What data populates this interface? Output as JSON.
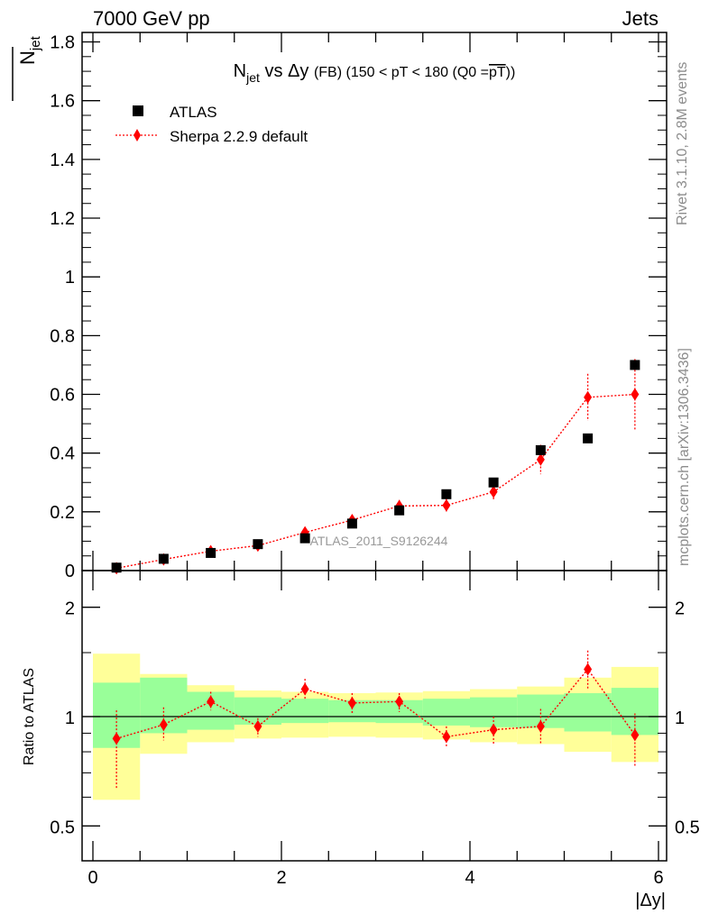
{
  "header": {
    "energy": "7000 GeV pp",
    "process": "Jets"
  },
  "plot_title": {
    "main": "N",
    "main_sub": "jet",
    "middle": " vs Δy ",
    "fb": "(FB)",
    "range": " (150 < pT < 180 (Q0 =",
    "q0": "pT",
    "close": "))"
  },
  "y_axis_title": {
    "base": "N",
    "sub": "jet"
  },
  "side_texts": {
    "rivet": "Rivet 3.1.10,  2.8M events",
    "mcplots": "mcplots.cern.ch [arXiv:1306.3436]"
  },
  "watermark": "ATLAS_2011_S9126244",
  "colors": {
    "data": "#000000",
    "mc": "#ff0000",
    "band_inner": "#99ff99",
    "band_outer": "#ffff99"
  },
  "chart_data": [
    {
      "type": "scatter",
      "panel": "main",
      "xlabel": "|Δy|",
      "ylabel": "Njet",
      "xlim": [
        0,
        6
      ],
      "ylim": [
        0,
        1.82
      ],
      "x_ticks": [
        0,
        2,
        4,
        6
      ],
      "y_ticks": [
        0,
        0.2,
        0.4,
        0.6,
        0.8,
        1,
        1.2,
        1.4,
        1.6,
        1.8
      ],
      "x_tick_labels": [
        "0",
        "2",
        "4",
        "6"
      ],
      "y_tick_labels": [
        "0",
        "0.2",
        "0.4",
        "0.6",
        "0.8",
        "1",
        "1.2",
        "1.4",
        "1.6",
        "1.8"
      ],
      "bin_edges": [
        0,
        0.5,
        1,
        1.5,
        2,
        2.5,
        3,
        3.5,
        4,
        4.5,
        5,
        5.5,
        6
      ],
      "legend": [
        "ATLAS",
        "Sherpa 2.2.9 default"
      ],
      "legend_position": "top-left",
      "series": [
        {
          "name": "ATLAS",
          "marker": "square",
          "x": [
            0.25,
            0.75,
            1.25,
            1.75,
            2.25,
            2.75,
            3.25,
            3.75,
            4.25,
            4.75,
            5.25,
            5.75
          ],
          "values": [
            0.01,
            0.04,
            0.06,
            0.09,
            0.11,
            0.16,
            0.205,
            0.26,
            0.3,
            0.41,
            0.45,
            0.7
          ]
        },
        {
          "name": "Sherpa 2.2.9 default",
          "marker": "diamond",
          "line": "dotted",
          "x": [
            0.25,
            0.75,
            1.25,
            1.75,
            2.25,
            2.75,
            3.25,
            3.75,
            4.25,
            4.75,
            5.25,
            5.75
          ],
          "values": [
            0.008,
            0.038,
            0.066,
            0.085,
            0.13,
            0.172,
            0.22,
            0.222,
            0.268,
            0.378,
            0.59,
            0.6
          ],
          "err_lo": [
            0.005,
            0.008,
            0.01,
            0.01,
            0.012,
            0.015,
            0.02,
            0.022,
            0.03,
            0.05,
            0.08,
            0.12
          ],
          "err_hi": [
            0.005,
            0.008,
            0.01,
            0.01,
            0.012,
            0.015,
            0.02,
            0.022,
            0.03,
            0.05,
            0.08,
            0.12
          ]
        }
      ]
    },
    {
      "type": "line",
      "panel": "ratio",
      "xlabel": "|Δy|",
      "ylabel": "Ratio to ATLAS",
      "y_scale": "log",
      "xlim": [
        0,
        6
      ],
      "ylim": [
        0.4,
        2.4
      ],
      "y_ticks": [
        0.5,
        1,
        2
      ],
      "y_tick_labels": [
        "0.5",
        "1",
        "2"
      ],
      "reference_line": 1,
      "bands": {
        "inner": [
          [
            0.82,
            1.24
          ],
          [
            0.9,
            1.28
          ],
          [
            0.92,
            1.17
          ],
          [
            0.95,
            1.13
          ],
          [
            0.96,
            1.12
          ],
          [
            0.965,
            1.11
          ],
          [
            0.96,
            1.11
          ],
          [
            0.945,
            1.12
          ],
          [
            0.935,
            1.13
          ],
          [
            0.93,
            1.15
          ],
          [
            0.91,
            1.16
          ],
          [
            0.89,
            1.2
          ]
        ],
        "outer": [
          [
            0.59,
            1.49
          ],
          [
            0.79,
            1.31
          ],
          [
            0.85,
            1.22
          ],
          [
            0.87,
            1.18
          ],
          [
            0.875,
            1.17
          ],
          [
            0.88,
            1.16
          ],
          [
            0.875,
            1.165
          ],
          [
            0.865,
            1.175
          ],
          [
            0.85,
            1.19
          ],
          [
            0.84,
            1.21
          ],
          [
            0.8,
            1.28
          ],
          [
            0.75,
            1.37
          ]
        ]
      },
      "series": [
        {
          "name": "Sherpa 2.2.9 default",
          "x": [
            0.25,
            0.75,
            1.25,
            1.75,
            2.25,
            2.75,
            3.25,
            3.75,
            4.25,
            4.75,
            5.25,
            5.75
          ],
          "values": [
            0.87,
            0.95,
            1.1,
            0.94,
            1.19,
            1.09,
            1.1,
            0.88,
            0.92,
            0.94,
            1.35,
            0.89
          ],
          "err_lo": [
            0.24,
            0.09,
            0.06,
            0.06,
            0.07,
            0.07,
            0.07,
            0.06,
            0.08,
            0.1,
            0.16,
            0.16
          ],
          "err_hi": [
            0.17,
            0.11,
            0.07,
            0.05,
            0.08,
            0.07,
            0.06,
            0.06,
            0.08,
            0.11,
            0.17,
            0.13
          ]
        }
      ]
    }
  ]
}
